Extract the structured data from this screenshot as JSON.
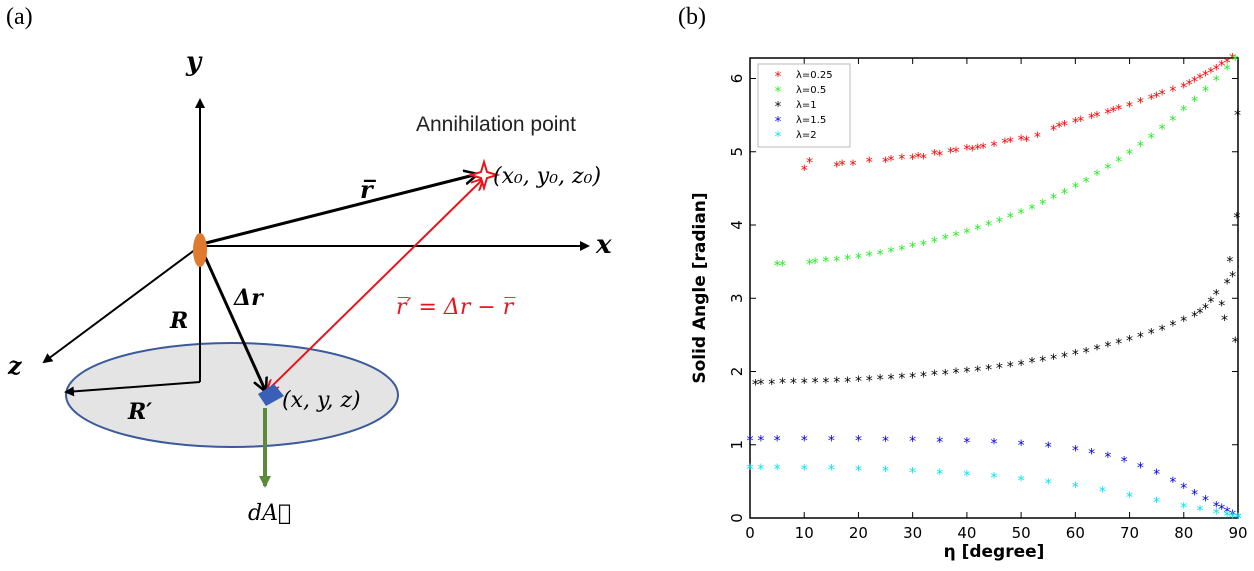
{
  "panels": {
    "a_label": "(a)",
    "b_label": "(b)"
  },
  "diagram": {
    "axis_y": "y",
    "axis_x": "x",
    "axis_z": "z",
    "annihilation_point": "Annihilation point",
    "point_coords": "(x₀, y₀, z₀)",
    "r_vector": "r̅",
    "delta_r": "Δr",
    "r_prime_eq": "r̅′ = Δr − r̅",
    "R_label": "R",
    "R_prime_label": "R′",
    "element_coords": "(x, y, z)",
    "dA_label": "dA⃗",
    "colors": {
      "disk_fill": "#e4e4e4",
      "disk_stroke": "#3a5a9c",
      "source": "#e07a2e",
      "element": "#3a5fb7",
      "red_ray": "#e8141c",
      "normal": "#5a8a3a"
    }
  },
  "chart_data": {
    "type": "scatter",
    "xlabel": "η [degree]",
    "ylabel": "Solid Angle [radian]",
    "xlim": [
      0,
      90
    ],
    "ylim": [
      0,
      6.28
    ],
    "xticks": [
      0,
      10,
      20,
      30,
      40,
      50,
      60,
      70,
      80,
      90
    ],
    "yticks": [
      0,
      1,
      2,
      3,
      4,
      5,
      6
    ],
    "legend_position": "top-left",
    "marker": "*",
    "series": [
      {
        "name": "λ=0.25",
        "color": "#ff0000",
        "x": [
          10,
          11,
          16,
          17,
          19,
          22,
          25,
          26,
          28,
          30,
          31,
          32,
          34,
          35,
          37,
          38,
          40,
          41,
          42,
          43,
          45,
          47,
          48,
          50,
          51,
          53,
          56,
          57,
          58,
          60,
          61,
          63,
          64,
          66,
          67,
          68,
          70,
          72,
          74,
          75,
          76,
          78,
          80,
          81,
          82,
          83,
          84,
          85,
          86,
          87,
          88,
          89
        ],
        "y": [
          4.75,
          4.85,
          4.8,
          4.82,
          4.82,
          4.86,
          4.86,
          4.88,
          4.9,
          4.9,
          4.92,
          4.91,
          4.96,
          4.95,
          4.99,
          5.0,
          5.03,
          5.02,
          5.04,
          5.05,
          5.08,
          5.12,
          5.13,
          5.16,
          5.15,
          5.2,
          5.3,
          5.34,
          5.36,
          5.4,
          5.42,
          5.46,
          5.48,
          5.52,
          5.55,
          5.58,
          5.62,
          5.67,
          5.72,
          5.75,
          5.78,
          5.83,
          5.88,
          5.92,
          5.96,
          6.0,
          6.04,
          6.08,
          6.12,
          6.18,
          6.22,
          6.27
        ]
      },
      {
        "name": "λ=0.5",
        "color": "#22ee22",
        "x": [
          5,
          6,
          11,
          12,
          14,
          16,
          18,
          20,
          22,
          24,
          26,
          28,
          30,
          32,
          34,
          36,
          38,
          40,
          42,
          44,
          46,
          48,
          50,
          52,
          54,
          56,
          58,
          60,
          62,
          64,
          66,
          68,
          70,
          72,
          74,
          76,
          78,
          80,
          82,
          84,
          86,
          88,
          89.5
        ],
        "y": [
          3.45,
          3.45,
          3.47,
          3.48,
          3.5,
          3.51,
          3.53,
          3.55,
          3.58,
          3.6,
          3.63,
          3.66,
          3.7,
          3.73,
          3.77,
          3.81,
          3.85,
          3.89,
          3.94,
          3.99,
          4.04,
          4.1,
          4.16,
          4.22,
          4.29,
          4.36,
          4.43,
          4.51,
          4.59,
          4.68,
          4.77,
          4.87,
          4.97,
          5.08,
          5.19,
          5.31,
          5.43,
          5.56,
          5.69,
          5.83,
          5.97,
          6.12,
          6.25
        ]
      },
      {
        "name": "λ=1",
        "color": "#000000",
        "x": [
          1,
          2,
          4,
          6,
          8,
          10,
          12,
          14,
          16,
          18,
          20,
          22,
          24,
          26,
          28,
          30,
          32,
          34,
          36,
          38,
          40,
          42,
          44,
          46,
          48,
          50,
          52,
          54,
          56,
          58,
          60,
          62,
          64,
          66,
          68,
          70,
          72,
          74,
          76,
          78,
          80,
          82,
          83,
          84,
          85,
          86,
          87,
          87.5,
          88,
          88.5,
          89,
          89.5,
          89.8,
          89.9
        ],
        "y": [
          1.82,
          1.83,
          1.83,
          1.84,
          1.84,
          1.84,
          1.85,
          1.85,
          1.86,
          1.86,
          1.87,
          1.88,
          1.89,
          1.9,
          1.91,
          1.92,
          1.93,
          1.95,
          1.96,
          1.98,
          1.99,
          2.01,
          2.03,
          2.05,
          2.07,
          2.09,
          2.12,
          2.14,
          2.17,
          2.2,
          2.23,
          2.26,
          2.3,
          2.34,
          2.38,
          2.42,
          2.47,
          2.52,
          2.57,
          2.63,
          2.69,
          2.75,
          2.8,
          2.86,
          2.95,
          3.05,
          2.9,
          2.7,
          3.2,
          3.5,
          3.3,
          2.4,
          4.1,
          5.5
        ]
      },
      {
        "name": "λ=1.5",
        "color": "#0000ee",
        "x": [
          0,
          2,
          5,
          10,
          15,
          20,
          25,
          30,
          35,
          40,
          45,
          50,
          55,
          60,
          63,
          66,
          69,
          72,
          75,
          78,
          80,
          82,
          84,
          86,
          87,
          88,
          89,
          90
        ],
        "y": [
          1.06,
          1.06,
          1.06,
          1.06,
          1.06,
          1.06,
          1.05,
          1.05,
          1.04,
          1.03,
          1.02,
          1.0,
          0.97,
          0.92,
          0.88,
          0.83,
          0.77,
          0.69,
          0.6,
          0.49,
          0.41,
          0.32,
          0.24,
          0.16,
          0.12,
          0.08,
          0.04,
          0.0
        ]
      },
      {
        "name": "λ=2",
        "color": "#00e5ee",
        "x": [
          0,
          2,
          5,
          10,
          15,
          20,
          25,
          30,
          35,
          40,
          45,
          50,
          55,
          60,
          65,
          70,
          75,
          80,
          83,
          86,
          88,
          89,
          90
        ],
        "y": [
          0.67,
          0.67,
          0.67,
          0.66,
          0.66,
          0.65,
          0.64,
          0.62,
          0.6,
          0.58,
          0.55,
          0.51,
          0.47,
          0.42,
          0.36,
          0.29,
          0.22,
          0.14,
          0.1,
          0.06,
          0.03,
          0.01,
          0.0
        ]
      }
    ]
  }
}
